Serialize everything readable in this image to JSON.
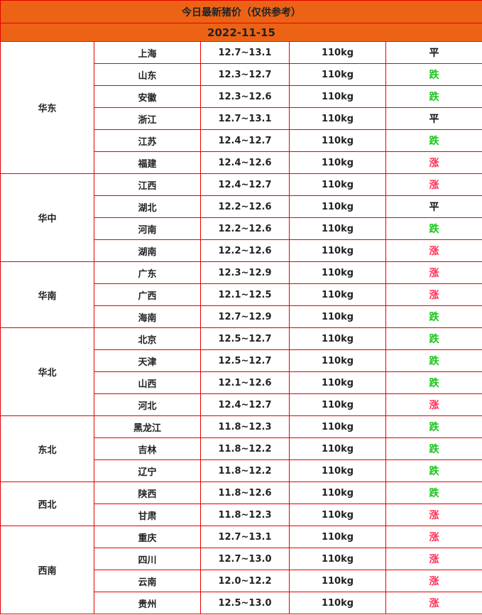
{
  "title": "今日最新猪价（仅供参考）",
  "date": "2022-11-15",
  "colors": {
    "header_bg": "#ec6315",
    "border": "#e60000",
    "down": "#1bc41b",
    "up": "#ff2e55",
    "flat": "#111111"
  },
  "regions": [
    {
      "name": "华东",
      "rows": [
        [
          "上海",
          "12.7~13.1",
          "110kg",
          "平"
        ],
        [
          "山东",
          "12.3~12.7",
          "110kg",
          "跌"
        ],
        [
          "安徽",
          "12.3~12.6",
          "110kg",
          "跌"
        ],
        [
          "浙江",
          "12.7~13.1",
          "110kg",
          "平"
        ],
        [
          "江苏",
          "12.4~12.7",
          "110kg",
          "跌"
        ],
        [
          "福建",
          "12.4~12.6",
          "110kg",
          "涨"
        ]
      ]
    },
    {
      "name": "华中",
      "rows": [
        [
          "江西",
          "12.4~12.7",
          "110kg",
          "涨"
        ],
        [
          "湖北",
          "12.2~12.6",
          "110kg",
          "平"
        ],
        [
          "河南",
          "12.2~12.6",
          "110kg",
          "跌"
        ],
        [
          "湖南",
          "12.2~12.6",
          "110kg",
          "涨"
        ]
      ]
    },
    {
      "name": "华南",
      "rows": [
        [
          "广东",
          "12.3~12.9",
          "110kg",
          "涨"
        ],
        [
          "广西",
          "12.1~12.5",
          "110kg",
          "涨"
        ],
        [
          "海南",
          "12.7~12.9",
          "110kg",
          "跌"
        ]
      ]
    },
    {
      "name": "华北",
      "rows": [
        [
          "北京",
          "12.5~12.7",
          "110kg",
          "跌"
        ],
        [
          "天津",
          "12.5~12.7",
          "110kg",
          "跌"
        ],
        [
          "山西",
          "12.1~12.6",
          "110kg",
          "跌"
        ],
        [
          "河北",
          "12.4~12.7",
          "110kg",
          "涨"
        ]
      ]
    },
    {
      "name": "东北",
      "rows": [
        [
          "黑龙江",
          "11.8~12.3",
          "110kg",
          "跌"
        ],
        [
          "吉林",
          "11.8~12.2",
          "110kg",
          "跌"
        ],
        [
          "辽宁",
          "11.8~12.2",
          "110kg",
          "跌"
        ]
      ]
    },
    {
      "name": "西北",
      "rows": [
        [
          "陕西",
          "11.8~12.6",
          "110kg",
          "跌"
        ],
        [
          "甘肃",
          "11.8~12.3",
          "110kg",
          "涨"
        ]
      ]
    },
    {
      "name": "西南",
      "rows": [
        [
          "重庆",
          "12.7~13.1",
          "110kg",
          "涨"
        ],
        [
          "四川",
          "12.7~13.0",
          "110kg",
          "涨"
        ],
        [
          "云南",
          "12.0~12.2",
          "110kg",
          "涨"
        ],
        [
          "贵州",
          "12.5~13.0",
          "110kg",
          "涨"
        ]
      ]
    }
  ]
}
